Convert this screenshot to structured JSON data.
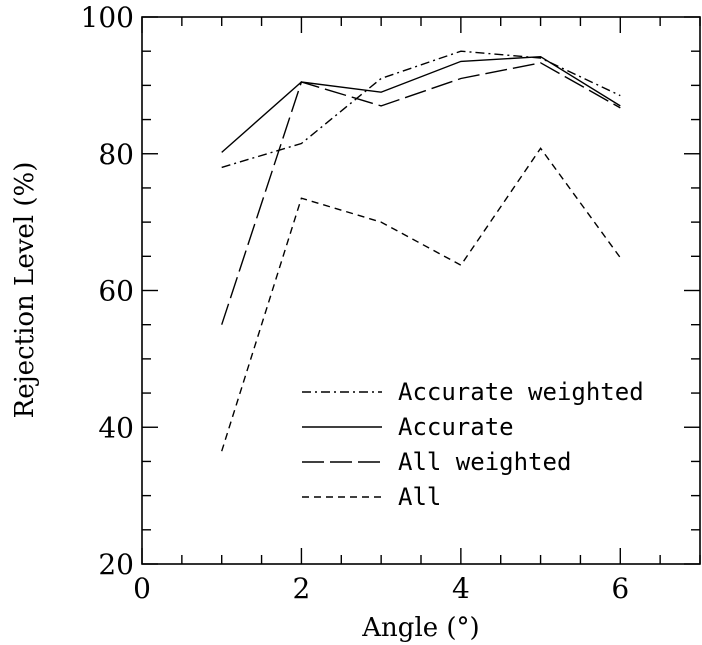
{
  "chart_data": {
    "type": "line",
    "xlabel": "Angle (°)",
    "ylabel": "Rejection Level (%)",
    "xlim": [
      0,
      7
    ],
    "ylim": [
      20,
      100
    ],
    "x_ticks": [
      0,
      2,
      4,
      6
    ],
    "x_tick_labels": [
      "0",
      "2",
      "4",
      "6"
    ],
    "y_ticks": [
      20,
      40,
      60,
      80,
      100
    ],
    "y_tick_labels": [
      "20",
      "40",
      "60",
      "80",
      "100"
    ],
    "grid": false,
    "legend_placement": "bottom-right",
    "x": [
      1,
      2,
      3,
      4,
      5,
      6
    ],
    "series": [
      {
        "name": "Accurate weighted",
        "style": "dash-dot",
        "values": [
          78,
          81.5,
          91,
          95,
          94,
          88.5
        ]
      },
      {
        "name": "Accurate",
        "style": "solid",
        "values": [
          80.2,
          90.5,
          89,
          93.5,
          94.2,
          87
        ]
      },
      {
        "name": "All weighted",
        "style": "long-dash",
        "values": [
          55,
          90.5,
          87,
          91,
          93.3,
          86.7
        ]
      },
      {
        "name": "All",
        "style": "short-dash",
        "values": [
          36.5,
          73.5,
          70,
          63.7,
          80.8,
          64.8
        ]
      }
    ]
  }
}
